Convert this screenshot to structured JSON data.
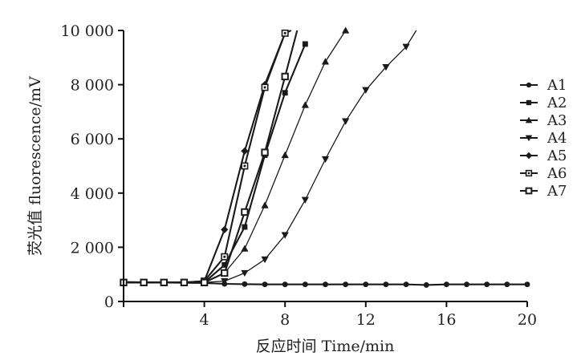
{
  "chart_data": {
    "type": "line",
    "title": "",
    "xlabel": "反应时间 Time/min",
    "ylabel": "荧光值 fluorescence/mV",
    "xlim": [
      0,
      20
    ],
    "ylim": [
      0,
      10000
    ],
    "xticks": [
      0,
      4,
      8,
      12,
      16,
      20
    ],
    "xtick_labels": [
      "",
      "4",
      "8",
      "12",
      "16",
      "20"
    ],
    "yticks": [
      0,
      2000,
      4000,
      6000,
      8000,
      10000
    ],
    "ytick_labels": [
      "0",
      "2 000",
      "4 000",
      "6 000",
      "8 000",
      "10 000"
    ],
    "grid": false,
    "legend_position": "right",
    "series": [
      {
        "name": "A1",
        "marker": "circle",
        "x": [
          0,
          1,
          2,
          3,
          4,
          5,
          6,
          7,
          8,
          9,
          10,
          11,
          12,
          13,
          14,
          15,
          16,
          17,
          18,
          19,
          20
        ],
        "y": [
          720,
          710,
          700,
          690,
          680,
          650,
          640,
          630,
          630,
          630,
          630,
          630,
          630,
          630,
          630,
          610,
          630,
          630,
          630,
          630,
          630
        ]
      },
      {
        "name": "A2",
        "marker": "square-filled",
        "x": [
          0,
          1,
          2,
          3,
          4,
          5,
          6,
          7,
          8,
          9
        ],
        "y": [
          700,
          700,
          700,
          700,
          700,
          1350,
          2750,
          5400,
          7700,
          9500
        ]
      },
      {
        "name": "A3",
        "marker": "triangle-up",
        "x": [
          0,
          1,
          2,
          3,
          4,
          5,
          6,
          7,
          8,
          9,
          10,
          11
        ],
        "y": [
          700,
          700,
          700,
          700,
          700,
          1050,
          1950,
          3550,
          5400,
          7250,
          8850,
          10000
        ]
      },
      {
        "name": "A4",
        "marker": "triangle-down",
        "x": [
          0,
          1,
          2,
          3,
          4,
          5,
          6,
          7,
          8,
          9,
          10,
          11,
          12,
          13,
          14,
          14.5
        ],
        "y": [
          700,
          700,
          700,
          700,
          700,
          750,
          1050,
          1550,
          2450,
          3750,
          5250,
          6650,
          7800,
          8650,
          9400,
          10000
        ]
      },
      {
        "name": "A5",
        "marker": "diamond",
        "x": [
          0,
          1,
          2,
          3,
          4,
          5,
          6,
          7,
          8
        ],
        "y": [
          700,
          700,
          700,
          700,
          750,
          2650,
          5550,
          8000,
          9900
        ]
      },
      {
        "name": "A6",
        "marker": "square-center",
        "x": [
          0,
          1,
          2,
          3,
          4,
          5,
          6,
          7,
          8,
          8.3
        ],
        "y": [
          700,
          700,
          700,
          700,
          750,
          1650,
          5000,
          7900,
          9900,
          10000
        ]
      },
      {
        "name": "A7",
        "marker": "square-open",
        "x": [
          0,
          1,
          2,
          3,
          4,
          5,
          6,
          7,
          8,
          8.6
        ],
        "y": [
          700,
          700,
          700,
          700,
          700,
          1050,
          3300,
          5500,
          8300,
          10000
        ]
      }
    ]
  }
}
